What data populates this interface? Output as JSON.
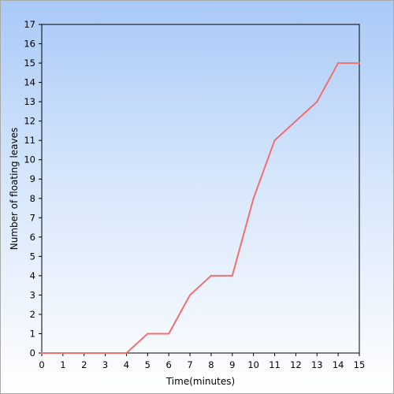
{
  "chart_data": {
    "type": "line",
    "title": "",
    "xlabel": "Time(minutes)",
    "ylabel": "Number of floating leaves",
    "xlim": [
      0,
      15
    ],
    "ylim": [
      0,
      17
    ],
    "x_ticks": [
      0,
      1,
      2,
      3,
      4,
      5,
      6,
      7,
      8,
      9,
      10,
      11,
      12,
      13,
      14,
      15
    ],
    "y_ticks": [
      0,
      1,
      2,
      3,
      4,
      5,
      6,
      7,
      8,
      9,
      10,
      11,
      12,
      13,
      14,
      15,
      16,
      17
    ],
    "grid": false,
    "legend": "none",
    "series": [
      {
        "color": "#f07070",
        "x": [
          0,
          1,
          2,
          3,
          4,
          5,
          6,
          7,
          8,
          9,
          10,
          11,
          12,
          13,
          14,
          15
        ],
        "y": [
          0,
          0,
          0,
          0,
          0,
          1,
          1,
          3,
          4,
          4,
          8,
          11,
          12,
          13,
          15,
          15
        ]
      }
    ]
  }
}
